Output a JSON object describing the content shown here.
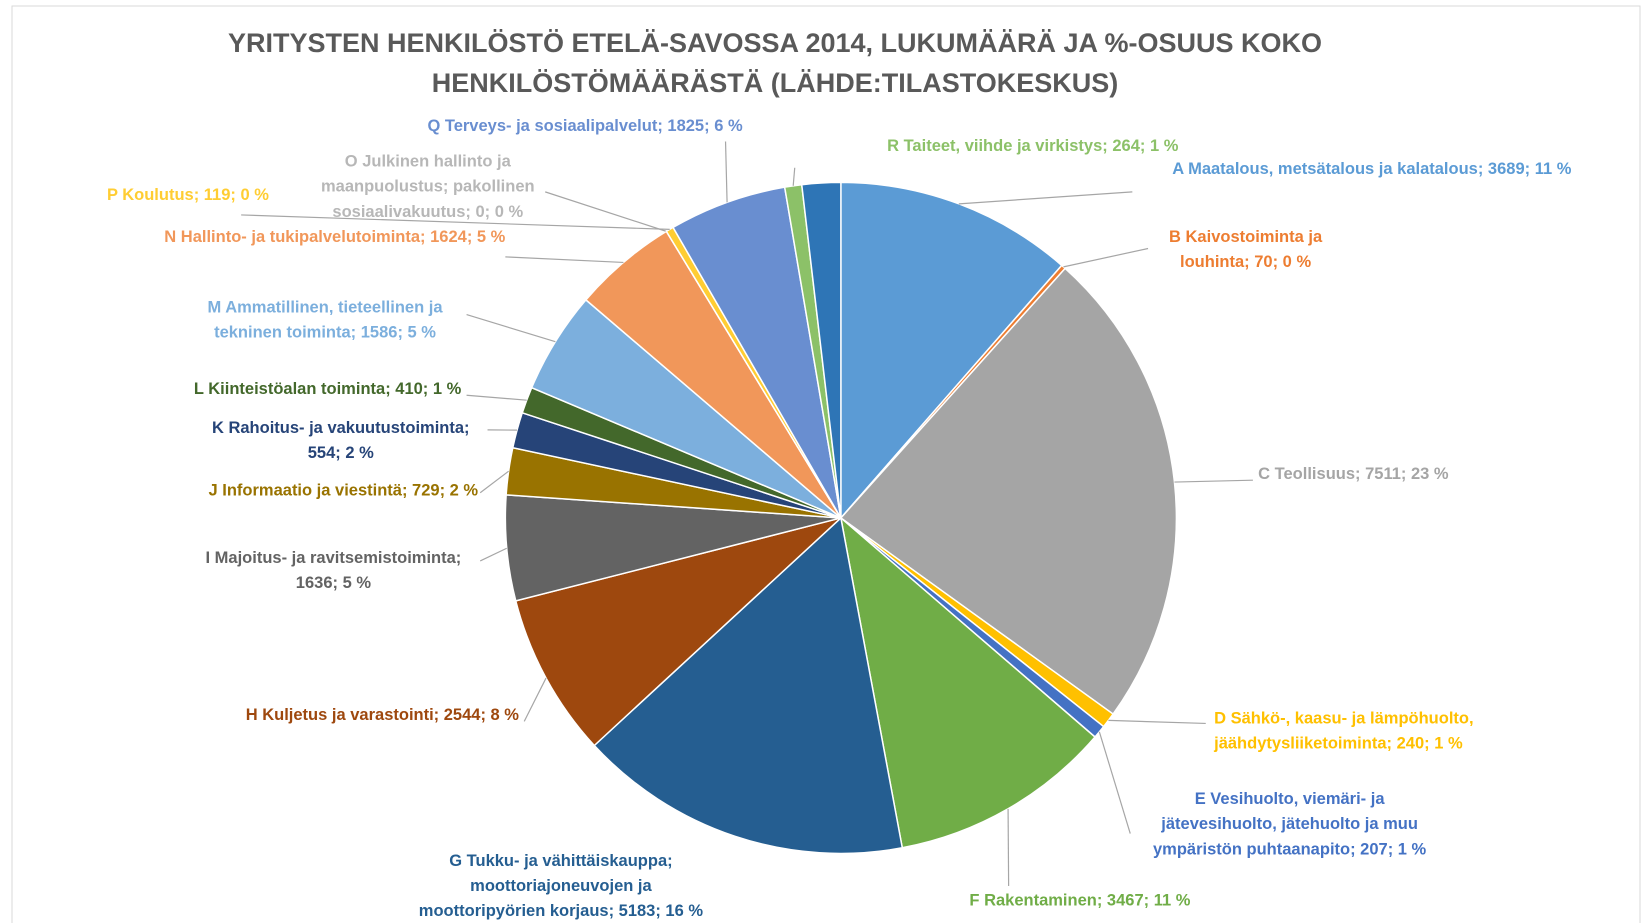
{
  "chart_data": {
    "type": "pie",
    "title": [
      "YRITYSTEN HENKILÖSTÖ ETELÄ-SAVOSSA 2014, LUKUMÄÄRÄ JA %-OSUUS KOKO",
      "HENKILÖSTÖMÄÄRÄSTÄ (LÄHDE:TILASTOKESKUS)"
    ],
    "values": [
      3689,
      70,
      7511,
      240,
      207,
      3467,
      5183,
      2544,
      1636,
      729,
      554,
      410,
      1586,
      1624,
      0,
      119,
      1825,
      264,
      600
    ],
    "value_labels": [
      [
        "A Maatalous, metsätalous ja kalatalous; 3689; 11 %"
      ],
      [
        "B Kaivostoiminta  ja",
        "louhinta; 70; 0 %"
      ],
      [
        "C Teollisuus; 7511; 23 %"
      ],
      [
        "D Sähkö-, kaasu- ja lämpöhuolto,",
        "jäähdytysliiketoiminta; 240; 1 %"
      ],
      [
        "E Vesihuolto, viemäri- ja",
        "jätevesihuolto, jätehuolto ja muu",
        "ympäristön puhtaanapito; 207; 1 %"
      ],
      [
        "F Rakentaminen; 3467; 11 %"
      ],
      [
        "G Tukku- ja vähittäiskauppa;",
        "moottoriajoneuvojen ja",
        "moottoripyörien korjaus; 5183; 16 %"
      ],
      [
        "H Kuljetus ja varastointi; 2544; 8 %"
      ],
      [
        "I Majoitus- ja ravitsemistoiminta;",
        "1636; 5 %"
      ],
      [
        "J Informaatio ja viestintä; 729; 2 %"
      ],
      [
        "K Rahoitus- ja vakuutustoiminta;",
        "554; 2 %"
      ],
      [
        "L Kiinteistöalan toiminta; 410; 1 %"
      ],
      [
        "M Ammatillinen, tieteellinen ja",
        "tekninen toiminta; 1586; 5 %"
      ],
      [
        "N Hallinto- ja tukipalvelutoiminta; 1624; 5 %"
      ],
      [
        "O Julkinen hallinto ja",
        "maanpuolustus; pakollinen",
        "sosiaalivakuutus; 0; 0 %"
      ],
      [
        "P Koulutus; 119; 0 %"
      ],
      [
        "Q Terveys- ja sosiaalipalvelut; 1825; 6 %"
      ],
      [
        "R Taiteet, viihde ja virkistys; 264; 1 %"
      ],
      null
    ],
    "colors": [
      "#5b9bd5",
      "#ed7d31",
      "#a5a5a5",
      "#ffc000",
      "#4472c4",
      "#70ad47",
      "#255e91",
      "#9e480e",
      "#636363",
      "#997300",
      "#264478",
      "#43682b",
      "#7cafdd",
      "#f1975a",
      "#b7b7b7",
      "#ffcd33",
      "#698ed0",
      "#8cc168",
      "#2e75b6"
    ]
  }
}
